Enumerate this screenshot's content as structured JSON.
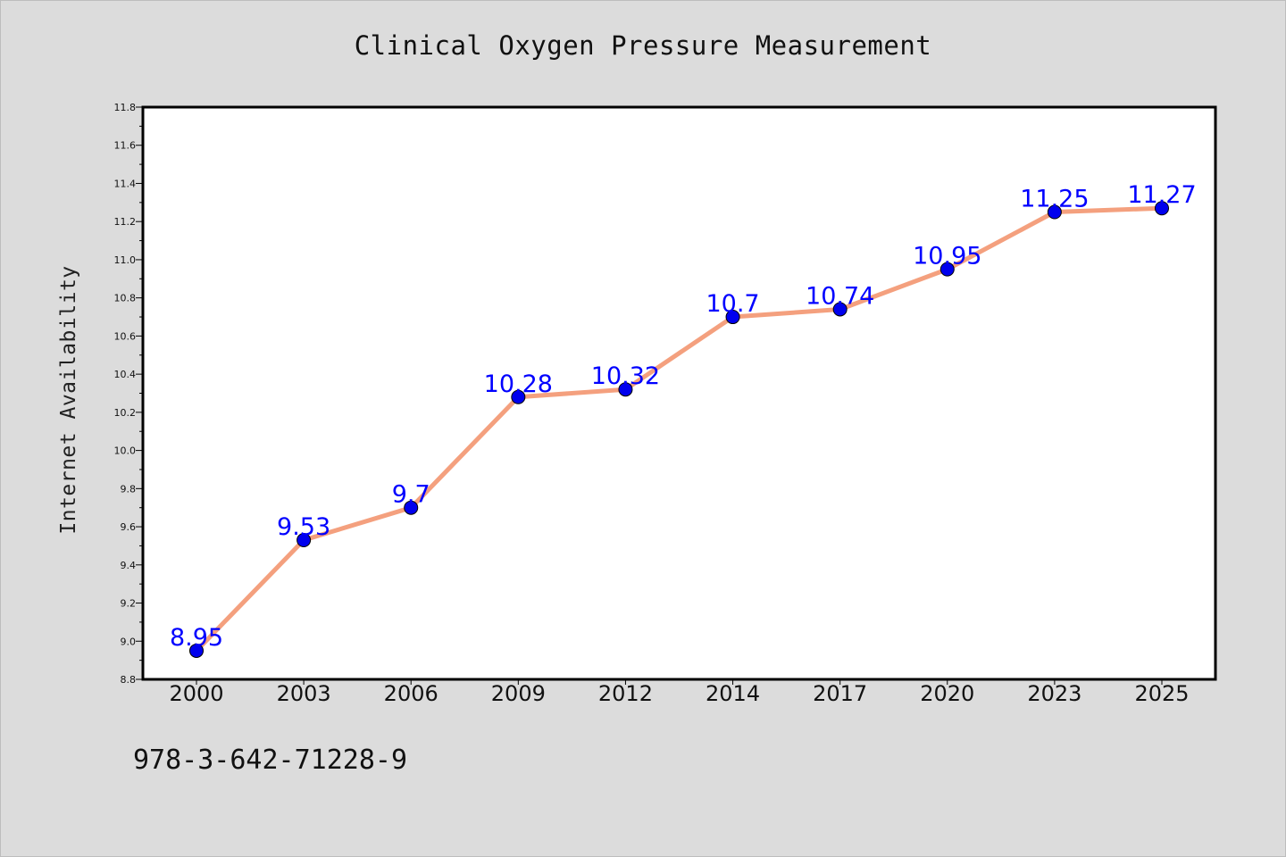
{
  "title": "Clinical Oxygen Pressure Measurement",
  "ylabel": "Internet Availability",
  "footnote": "978-3-642-71228-9",
  "colors": {
    "background": "#dcdcdc",
    "plot_background": "#ffffff",
    "line": "#f4a07e",
    "marker": "#0000ee",
    "data_label": "#0000ff"
  },
  "chart_data": {
    "type": "line",
    "title": "Clinical Oxygen Pressure Measurement",
    "xlabel": "",
    "ylabel": "Internet Availability",
    "categories": [
      "2000",
      "2003",
      "2006",
      "2009",
      "2012",
      "2014",
      "2017",
      "2020",
      "2023",
      "2025"
    ],
    "values": [
      8.95,
      9.53,
      9.7,
      10.28,
      10.32,
      10.7,
      10.74,
      10.95,
      11.25,
      11.27
    ],
    "data_labels": [
      "8.95",
      "9.53",
      "9.7",
      "10.28",
      "10.32",
      "10.7",
      "10.74",
      "10.95",
      "11.25",
      "11.27"
    ],
    "ylim": [
      8.8,
      11.8
    ],
    "yticks": [
      "8.8",
      "9.0",
      "9.2",
      "9.4",
      "9.6",
      "9.8",
      "10.0",
      "10.2",
      "10.4",
      "10.6",
      "10.8",
      "11.0",
      "11.2",
      "11.4",
      "11.6",
      "11.8"
    ],
    "grid": false,
    "legend": "none"
  }
}
